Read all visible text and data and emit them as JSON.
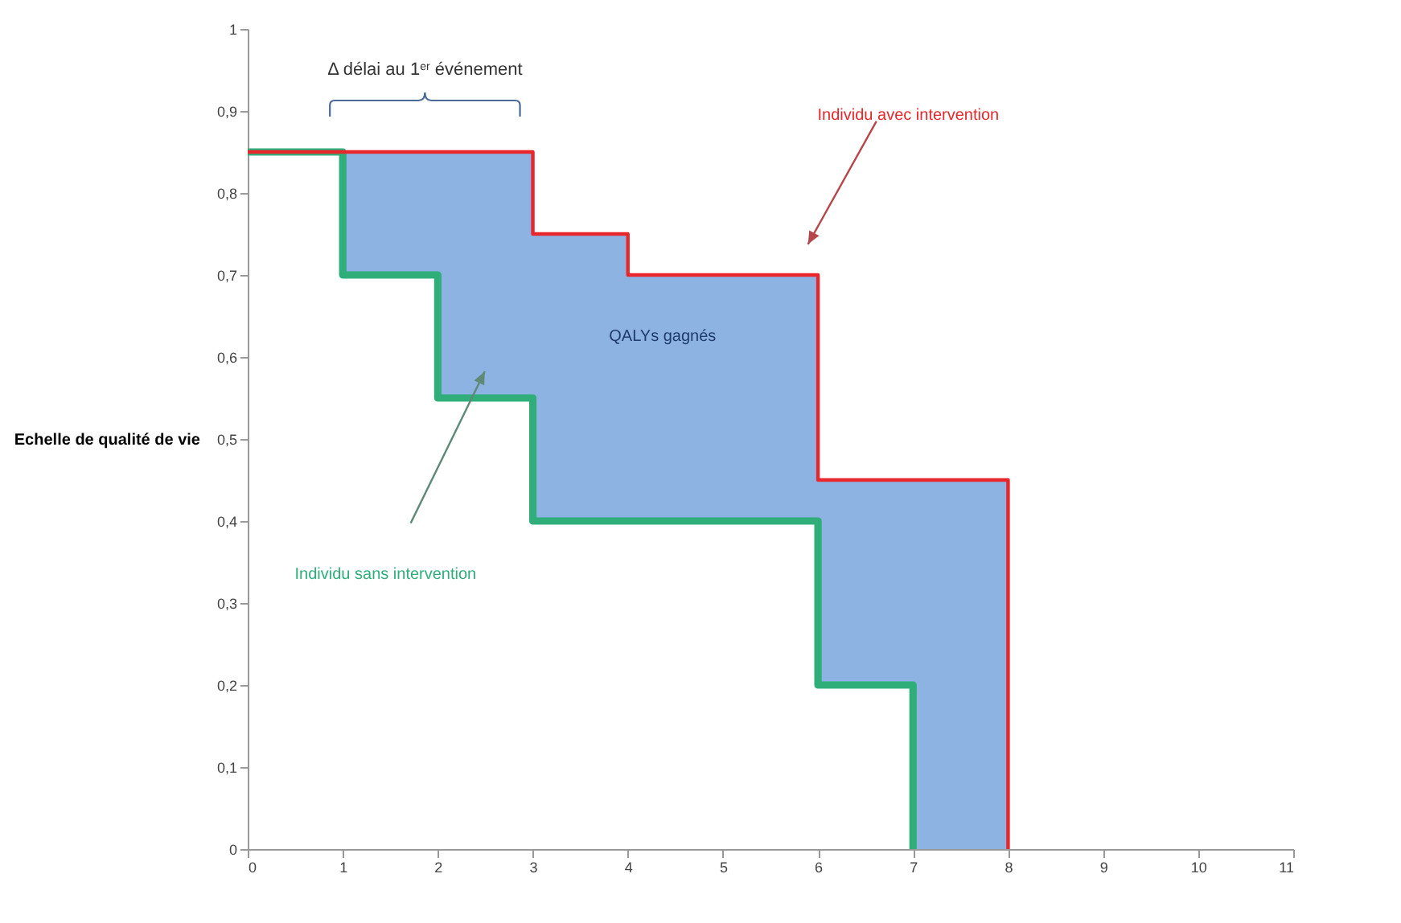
{
  "chart_data": {
    "type": "step",
    "ylabel": "Echelle de qualité de vie",
    "xlim": [
      0,
      11
    ],
    "xticks": [
      0,
      1,
      2,
      3,
      4,
      5,
      6,
      7,
      8,
      9,
      10,
      11
    ],
    "ylim": [
      0,
      1
    ],
    "yticks": [
      0,
      {
        "value": 0.1,
        "label": "0,1"
      },
      {
        "value": 0.2,
        "label": "0,2"
      },
      {
        "value": 0.3,
        "label": "0,3"
      },
      {
        "value": 0.4,
        "label": "0,4"
      },
      {
        "value": 0.5,
        "label": "0,5"
      },
      {
        "value": 0.6,
        "label": "0,6"
      },
      {
        "value": 0.7,
        "label": "0,7"
      },
      {
        "value": 0.8,
        "label": "0,8"
      },
      {
        "value": 0.9,
        "label": "0,9"
      },
      1
    ],
    "series": [
      {
        "name": "Individu sans intervention",
        "color": "#2fae7a",
        "x": [
          0,
          1,
          2,
          3,
          4,
          5,
          6,
          7
        ],
        "values": [
          0.85,
          0.7,
          0.55,
          0.4,
          0.4,
          0.4,
          0.2,
          0
        ]
      },
      {
        "name": "Individu avec intervention",
        "color": "#e8262b",
        "x": [
          0,
          1,
          2,
          3,
          4,
          5,
          6,
          7,
          8
        ],
        "values": [
          0.85,
          0.85,
          0.85,
          0.75,
          0.7,
          0.7,
          0.45,
          0.45,
          0
        ],
        "lower": [
          0.85,
          0.7,
          0.55,
          0.4,
          0.4,
          0.4,
          0.2,
          0,
          0
        ],
        "upper": [
          0.85,
          0.85,
          0.85,
          0.75,
          0.7,
          0.7,
          0.45,
          0.45,
          0
        ]
      }
    ],
    "annotations": [
      "Δ délai au 1$^{er}$ événement",
      "QALYs gagnés"
    ],
    "grid": false,
    "legend": false
  }
}
